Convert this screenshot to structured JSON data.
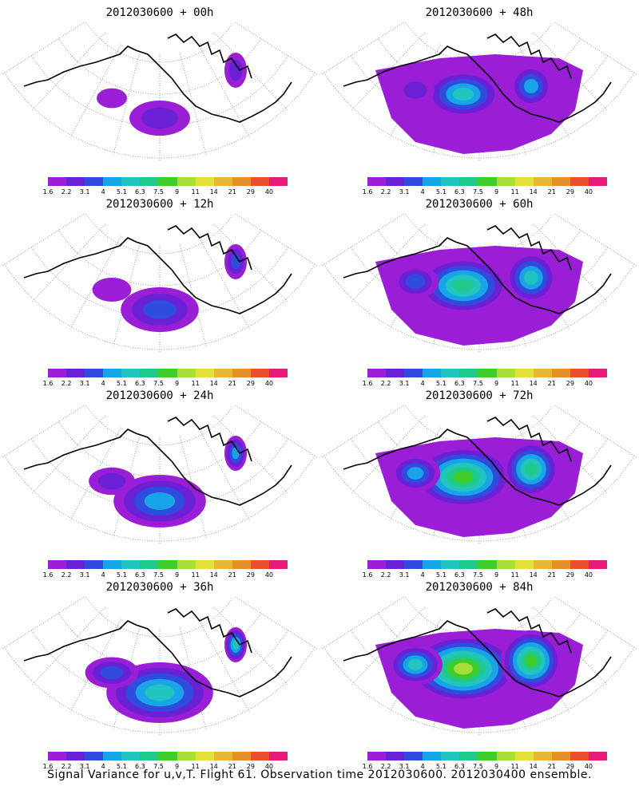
{
  "panels": [
    {
      "title": "2012030600 + 00h",
      "intensity": 0.2
    },
    {
      "title": "2012030600 + 48h",
      "intensity": 0.6
    },
    {
      "title": "2012030600 + 12h",
      "intensity": 0.32
    },
    {
      "title": "2012030600 + 60h",
      "intensity": 0.72
    },
    {
      "title": "2012030600 + 24h",
      "intensity": 0.42
    },
    {
      "title": "2012030600 + 72h",
      "intensity": 0.78
    },
    {
      "title": "2012030600 + 36h",
      "intensity": 0.52
    },
    {
      "title": "2012030600 + 84h",
      "intensity": 0.85
    }
  ],
  "colorbar": {
    "labels": [
      "1.6",
      "2.2",
      "3.1",
      "4",
      "5.1",
      "6.3",
      "7.5",
      "9",
      "11",
      "14",
      "21",
      "29",
      "40"
    ],
    "colors": [
      "#9a1ed6",
      "#6a20d4",
      "#2f4cdc",
      "#1aa4e8",
      "#22c4c0",
      "#20c88a",
      "#3ecc2a",
      "#a8de3a",
      "#e6e13a",
      "#e6b83a",
      "#e6902c",
      "#e6502e",
      "#e61a7a"
    ]
  },
  "caption": "Signal Variance for u,v,T. Flight 61. Observation time 2012030600. 2012030400 ensemble."
}
